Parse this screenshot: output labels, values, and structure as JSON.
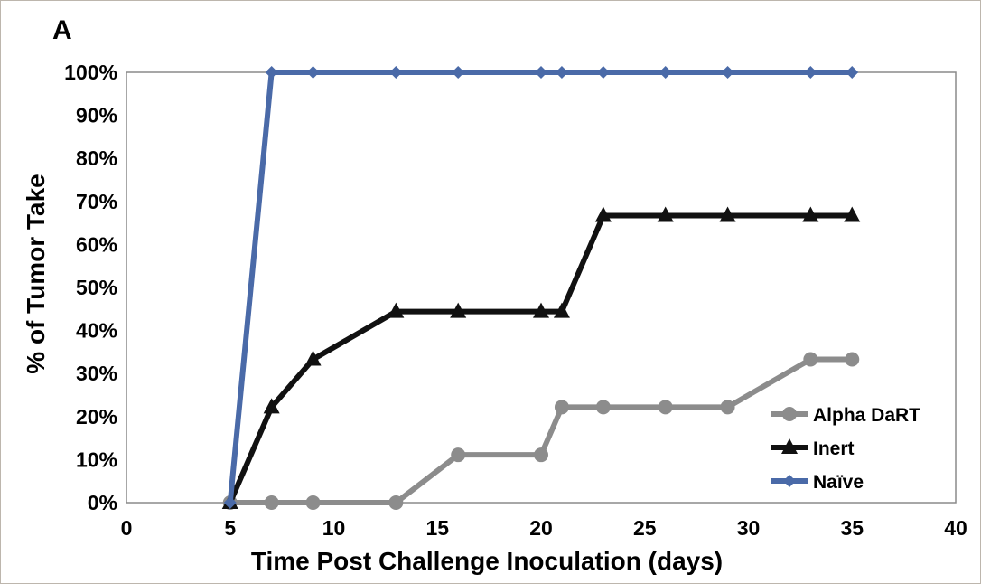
{
  "panel_label": "A",
  "chart_data": {
    "type": "line",
    "title": "",
    "xlabel": "Time Post Challenge Inoculation (days)",
    "ylabel": "% of Tumor Take",
    "xlim": [
      0,
      40
    ],
    "ylim": [
      0,
      100
    ],
    "x_ticks": [
      0,
      5,
      10,
      15,
      20,
      25,
      30,
      35,
      40
    ],
    "y_ticks": [
      0,
      10,
      20,
      30,
      40,
      50,
      60,
      70,
      80,
      90,
      100
    ],
    "x_tick_labels": [
      "0",
      "5",
      "10",
      "15",
      "20",
      "25",
      "30",
      "35",
      "40"
    ],
    "y_tick_labels": [
      "0%",
      "10%",
      "20%",
      "30%",
      "40%",
      "50%",
      "60%",
      "70%",
      "80%",
      "90%",
      "100%"
    ],
    "grid": false,
    "legend_position": "bottom-right",
    "series": [
      {
        "name": "Alpha DaRT",
        "color": "#8c8c8c",
        "marker": "circle",
        "x": [
          5,
          7,
          9,
          13,
          16,
          20,
          21,
          23,
          26,
          29,
          33,
          35
        ],
        "y": [
          0,
          0,
          0,
          0,
          11.1,
          11.1,
          22.2,
          22.2,
          22.2,
          22.2,
          33.3,
          33.3
        ]
      },
      {
        "name": "Inert",
        "color": "#111111",
        "marker": "triangle",
        "x": [
          5,
          7,
          9,
          13,
          16,
          20,
          21,
          23,
          26,
          29,
          33,
          35
        ],
        "y": [
          0,
          22.2,
          33.3,
          44.4,
          44.4,
          44.4,
          44.4,
          66.7,
          66.7,
          66.7,
          66.7,
          66.7
        ]
      },
      {
        "name": "Naïve",
        "color": "#4a6aa8",
        "marker": "diamond",
        "x": [
          5,
          7,
          9,
          13,
          16,
          20,
          21,
          23,
          26,
          29,
          33,
          35
        ],
        "y": [
          0,
          100,
          100,
          100,
          100,
          100,
          100,
          100,
          100,
          100,
          100,
          100
        ]
      }
    ]
  }
}
